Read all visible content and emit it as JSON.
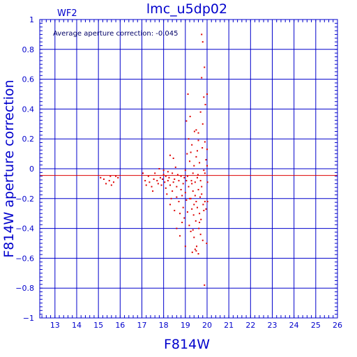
{
  "chart_data": {
    "type": "scatter",
    "title": "lmc_u5dp02",
    "corner_label": "WF2",
    "annotation": "Average aperture correction: -0.045",
    "xlabel": "F814W",
    "ylabel": "F814W aperture correction",
    "xlim": [
      12.3,
      26.0
    ],
    "ylim": [
      -1.0,
      1.0
    ],
    "x_ticks": [
      13,
      14,
      15,
      16,
      17,
      18,
      19,
      20,
      21,
      22,
      23,
      24,
      25,
      26
    ],
    "x_tick_labels": [
      "13",
      "14",
      "15",
      "16",
      "17",
      "18",
      "19",
      "20",
      "21",
      "22",
      "23",
      "24",
      "25",
      "26"
    ],
    "y_ticks": [
      -1,
      -0.8,
      -0.6,
      -0.4,
      -0.2,
      0,
      0.2,
      0.4,
      0.6,
      0.8,
      1
    ],
    "y_tick_labels": [
      "−1",
      "−0.8",
      "−0.6",
      "−0.4",
      "−0.2",
      "0",
      "0.2",
      "0.4",
      "0.6",
      "0.8",
      "1"
    ],
    "grid": true,
    "reference_line": {
      "y": -0.045,
      "color": "#dd0000"
    },
    "colors": {
      "axes": "#0000cc",
      "points": "#dd0000"
    },
    "points": [
      [
        15.1,
        -0.06
      ],
      [
        15.25,
        -0.07
      ],
      [
        15.35,
        -0.1
      ],
      [
        15.5,
        -0.08
      ],
      [
        15.55,
        -0.05
      ],
      [
        15.6,
        -0.11
      ],
      [
        15.7,
        -0.09
      ],
      [
        15.8,
        -0.05
      ],
      [
        15.9,
        -0.06
      ],
      [
        17.05,
        -0.03
      ],
      [
        17.15,
        -0.08
      ],
      [
        17.2,
        -0.11
      ],
      [
        17.3,
        -0.05
      ],
      [
        17.35,
        -0.09
      ],
      [
        17.45,
        -0.12
      ],
      [
        17.5,
        -0.15
      ],
      [
        17.55,
        -0.07
      ],
      [
        17.6,
        -0.03
      ],
      [
        17.7,
        -0.08
      ],
      [
        17.75,
        -0.1
      ],
      [
        17.8,
        0.0
      ],
      [
        17.85,
        -0.06
      ],
      [
        17.9,
        -0.11
      ],
      [
        17.95,
        -0.07
      ],
      [
        18.0,
        -0.01
      ],
      [
        18.0,
        -0.04
      ],
      [
        18.05,
        -0.09
      ],
      [
        18.1,
        -0.13
      ],
      [
        18.1,
        -0.05
      ],
      [
        18.15,
        -0.17
      ],
      [
        18.2,
        -0.02
      ],
      [
        18.2,
        -0.08
      ],
      [
        18.25,
        -0.06
      ],
      [
        18.3,
        -0.11
      ],
      [
        18.3,
        -0.24
      ],
      [
        18.35,
        -0.2
      ],
      [
        18.4,
        -0.03
      ],
      [
        18.4,
        -0.15
      ],
      [
        18.45,
        -0.09
      ],
      [
        18.5,
        -0.28
      ],
      [
        18.5,
        -0.07
      ],
      [
        18.55,
        0.01
      ],
      [
        18.6,
        -0.12
      ],
      [
        18.6,
        -0.19
      ],
      [
        18.65,
        -0.04
      ],
      [
        18.7,
        -0.22
      ],
      [
        18.7,
        -0.08
      ],
      [
        18.75,
        -0.3
      ],
      [
        18.8,
        -0.14
      ],
      [
        18.8,
        -0.05
      ],
      [
        18.85,
        -0.18
      ],
      [
        18.9,
        -0.1
      ],
      [
        18.9,
        -0.26
      ],
      [
        18.95,
        -0.06
      ],
      [
        18.95,
        -0.33
      ],
      [
        19.0,
        -0.16
      ],
      [
        19.0,
        -0.52
      ],
      [
        19.0,
        -0.01
      ],
      [
        19.05,
        -0.21
      ],
      [
        19.05,
        -0.08
      ],
      [
        18.3,
        0.09
      ],
      [
        18.45,
        0.07
      ],
      [
        18.6,
        -0.4
      ],
      [
        18.75,
        -0.45
      ],
      [
        18.85,
        -0.36
      ],
      [
        19.05,
        0.32
      ],
      [
        19.08,
        0.1
      ],
      [
        19.1,
        -0.29
      ],
      [
        19.1,
        -0.05
      ],
      [
        19.12,
        0.5
      ],
      [
        19.15,
        -0.12
      ],
      [
        19.15,
        0.2
      ],
      [
        19.18,
        -0.38
      ],
      [
        19.2,
        0.05
      ],
      [
        19.2,
        -0.2
      ],
      [
        19.22,
        0.35
      ],
      [
        19.25,
        -0.42
      ],
      [
        19.25,
        0.11
      ],
      [
        19.28,
        -0.08
      ],
      [
        19.3,
        -0.27
      ],
      [
        19.3,
        0.16
      ],
      [
        19.32,
        -0.56
      ],
      [
        19.35,
        -0.03
      ],
      [
        19.35,
        -0.15
      ],
      [
        19.38,
        -0.31
      ],
      [
        19.4,
        0.02
      ],
      [
        19.4,
        -0.46
      ],
      [
        19.42,
        0.25
      ],
      [
        19.45,
        -0.09
      ],
      [
        19.45,
        -0.18
      ],
      [
        19.48,
        -0.35
      ],
      [
        19.5,
        0.08
      ],
      [
        19.5,
        -0.22
      ],
      [
        19.52,
        -0.52
      ],
      [
        19.55,
        -0.26
      ],
      [
        19.55,
        0.12
      ],
      [
        19.58,
        -0.04
      ],
      [
        19.6,
        0.24
      ],
      [
        19.6,
        -0.14
      ],
      [
        19.62,
        -0.4
      ],
      [
        19.65,
        0.04
      ],
      [
        19.65,
        -0.3
      ],
      [
        19.68,
        -0.19
      ],
      [
        19.7,
        0.38
      ],
      [
        19.7,
        -0.08
      ],
      [
        19.72,
        -0.34
      ],
      [
        19.75,
        0.61
      ],
      [
        19.75,
        -0.12
      ],
      [
        19.78,
        0.14
      ],
      [
        19.8,
        0.3
      ],
      [
        19.8,
        -0.48
      ],
      [
        19.82,
        -0.24
      ],
      [
        19.85,
        0.48
      ],
      [
        19.85,
        -0.01
      ],
      [
        19.88,
        0.68
      ],
      [
        19.88,
        -0.78
      ],
      [
        19.9,
        -0.22
      ],
      [
        19.9,
        0.18
      ],
      [
        19.92,
        0.43
      ],
      [
        19.95,
        0.06
      ],
      [
        19.95,
        -0.27
      ],
      [
        19.98,
        -0.5
      ],
      [
        20.0,
        0.5
      ],
      [
        20.0,
        0.13
      ],
      [
        20.02,
        -0.09
      ],
      [
        20.02,
        -0.22
      ],
      [
        20.0,
        0.02
      ],
      [
        19.5,
        -0.55
      ],
      [
        19.45,
        -0.54
      ],
      [
        19.6,
        -0.57
      ],
      [
        19.35,
        -0.41
      ],
      [
        19.7,
        -0.44
      ],
      [
        19.25,
        -0.2
      ],
      [
        19.65,
        -0.36
      ],
      [
        19.55,
        -0.06
      ],
      [
        19.4,
        -0.24
      ],
      [
        19.3,
        -0.1
      ],
      [
        19.75,
        -0.17
      ],
      [
        19.85,
        -0.28
      ],
      [
        19.9,
        -0.03
      ],
      [
        19.6,
        0.19
      ],
      [
        19.5,
        0.26
      ],
      [
        19.8,
        0.85
      ],
      [
        19.75,
        0.9
      ]
    ]
  }
}
